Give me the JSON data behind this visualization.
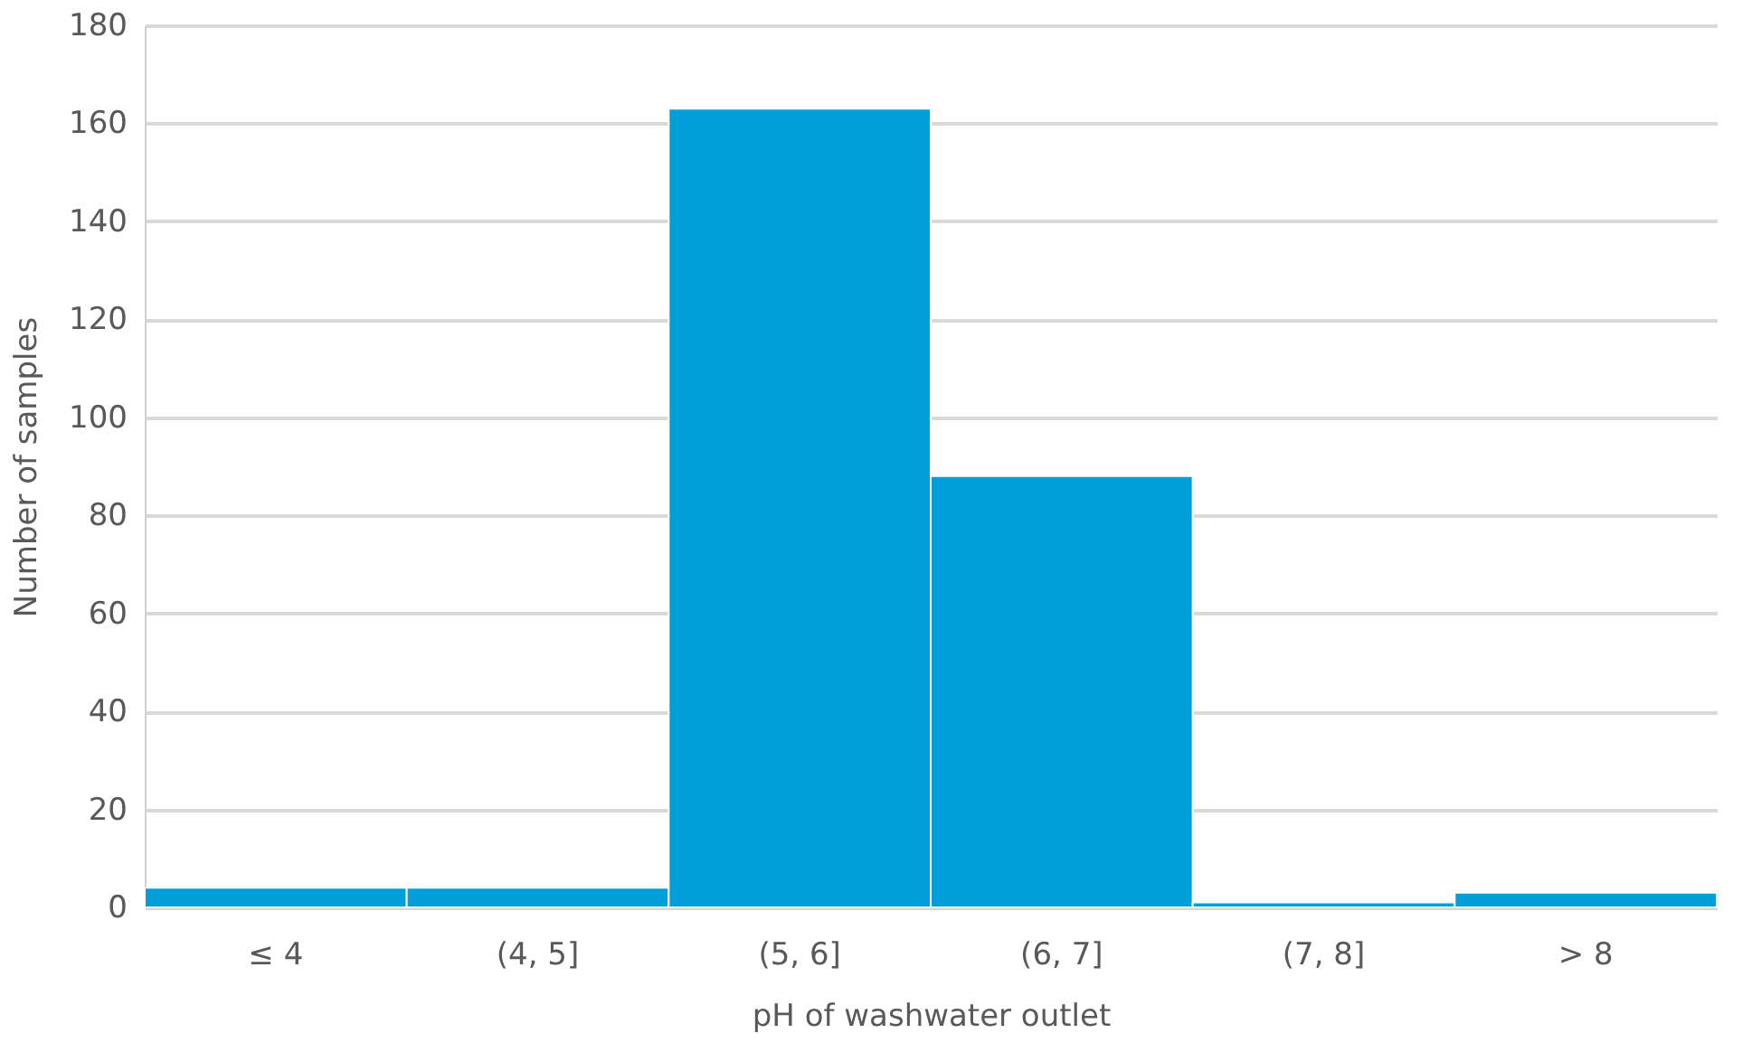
{
  "chart_data": {
    "type": "bar",
    "xlabel": "pH of washwater outlet",
    "ylabel": "Number of samples",
    "categories": [
      "≤ 4",
      "(4, 5]",
      "(5, 6]",
      "(6, 7]",
      "(7, 8]",
      "> 8"
    ],
    "values": [
      4,
      4,
      163,
      88,
      1,
      3
    ],
    "color": "#009fda",
    "ylim": [
      0,
      180
    ],
    "yticks": [
      0,
      20,
      40,
      60,
      80,
      100,
      120,
      140,
      160,
      180
    ],
    "grid": "y"
  }
}
